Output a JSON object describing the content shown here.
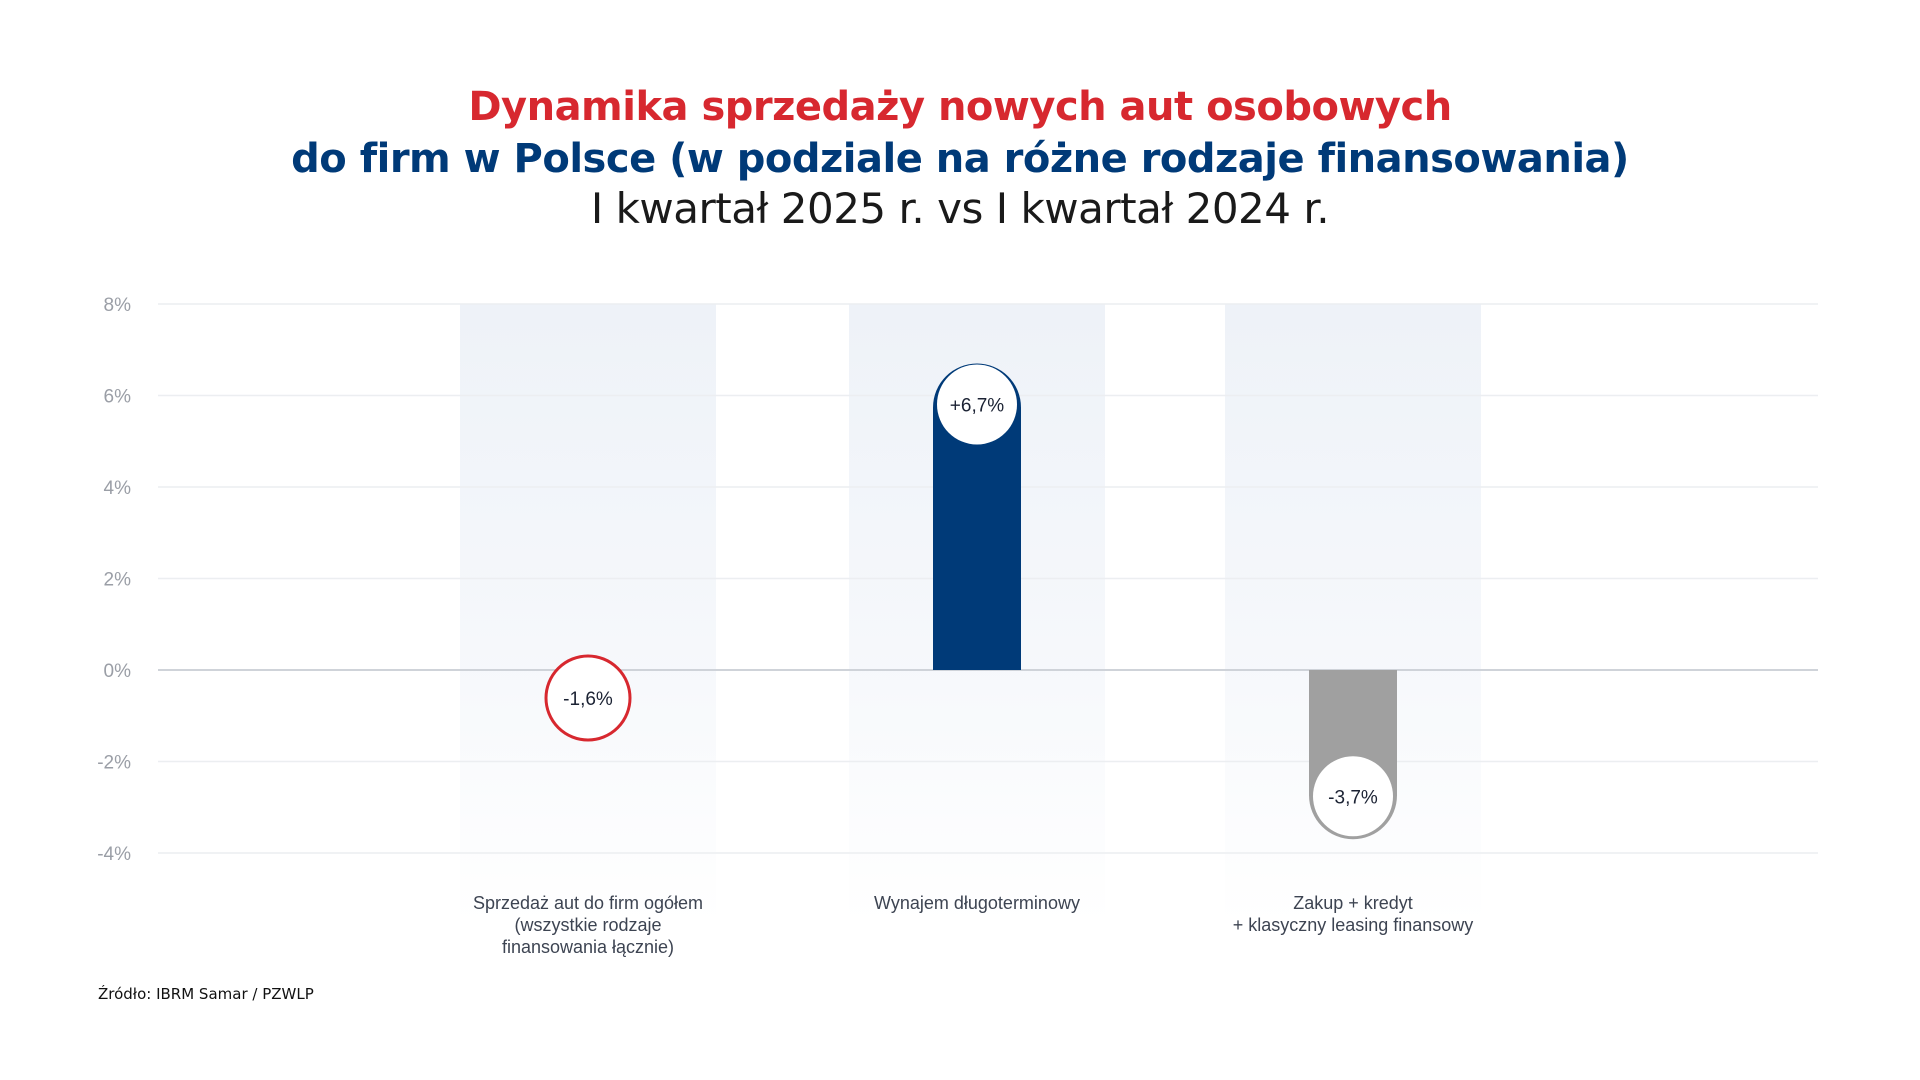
{
  "chart_data": {
    "type": "bar",
    "title": "Dynamika sprzedaży nowych aut osobowych",
    "title_line2": "do firm w Polsce (w podziale na różne rodzaje finansowania)",
    "subtitle": "I kwartał 2025 r. vs I kwartał 2024 r.",
    "categories": [
      [
        "Sprzedaż aut do firm ogółem",
        "(wszystkie rodzaje",
        "finansowania łącznie)"
      ],
      [
        "Wynajem długoterminowy"
      ],
      [
        "Zakup + kredyt",
        "+ klasyczny leasing finansowy"
      ]
    ],
    "values": [
      -1.6,
      6.7,
      -3.7
    ],
    "data_labels": [
      "-1,6%",
      "+6,7%",
      "-3,7%"
    ],
    "ylim": [
      -4,
      8
    ],
    "yticks": [
      8,
      6,
      4,
      2,
      0,
      -2,
      -4
    ],
    "ytick_labels": [
      "8%",
      "6%",
      "4%",
      "2%",
      "0%",
      "-2%",
      "-4%"
    ],
    "grid": true,
    "colors": {
      "title_red": "#d7282f",
      "title_navy": "#003a78",
      "bar_total": "#d7282f",
      "bar_rental": "#003a78",
      "bar_purchase": "#a0a0a0",
      "band": "#eef2f8"
    },
    "source": "Źródło:  IBRM Samar / PZWLP"
  }
}
